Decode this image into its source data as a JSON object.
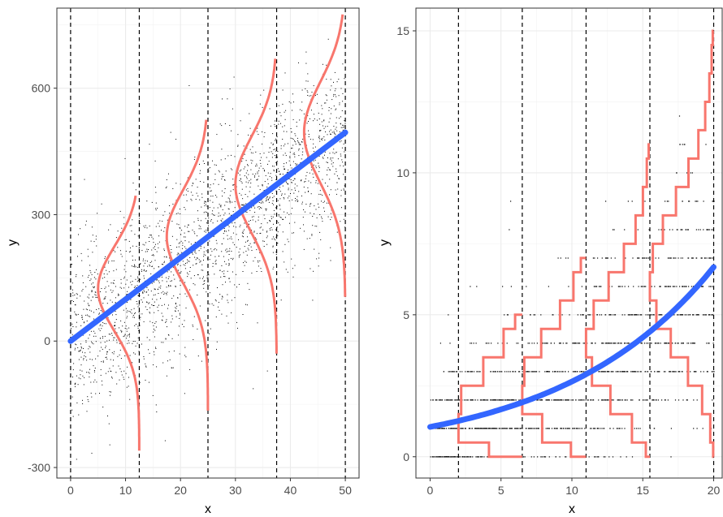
{
  "chart_data": [
    {
      "type": "scatter",
      "xlabel": "x",
      "ylabel": "y",
      "xlim": [
        -2.5,
        52.5
      ],
      "ylim": [
        -325,
        790
      ],
      "xticks": [
        0,
        10,
        20,
        30,
        40,
        50
      ],
      "yticks": [
        -300,
        0,
        300,
        600
      ],
      "xtick_labels": [
        "0",
        "10",
        "20",
        "30",
        "40",
        "50"
      ],
      "ytick_labels": [
        "-300",
        "0",
        "300",
        "600"
      ],
      "grid": true,
      "vlines": [
        0,
        12.5,
        25,
        37.5,
        50
      ],
      "scatter_sample_count": 2200,
      "trend_line": {
        "intercept": 0,
        "slope": 9.9,
        "x": [
          0,
          50
        ]
      },
      "density_curves": [
        {
          "x_anchor": 12.5,
          "mean": 124,
          "sd": 100,
          "y_range": [
            -260,
            345
          ]
        },
        {
          "x_anchor": 25,
          "mean": 248,
          "sd": 110,
          "y_range": [
            -165,
            525
          ]
        },
        {
          "x_anchor": 37.5,
          "mean": 371,
          "sd": 115,
          "y_range": [
            -30,
            670
          ]
        },
        {
          "x_anchor": 50,
          "mean": 495,
          "sd": 120,
          "y_range": [
            105,
            775
          ]
        }
      ],
      "colors": {
        "points": "#000000",
        "trend": "#3366ff",
        "density": "#f8766d",
        "vlines": "#000000",
        "grid": "#ebebeb",
        "border": "#333333"
      }
    },
    {
      "type": "scatter",
      "xlabel": "x",
      "ylabel": "y",
      "xlim": [
        -1,
        20.6
      ],
      "ylim": [
        -0.75,
        15.8
      ],
      "xticks": [
        0,
        5,
        10,
        15,
        20
      ],
      "yticks": [
        0,
        5,
        10,
        15
      ],
      "xtick_labels": [
        "0",
        "5",
        "10",
        "15",
        "20"
      ],
      "ytick_labels": [
        "0",
        "5",
        "10",
        "15"
      ],
      "grid": true,
      "vlines": [
        2,
        6.5,
        11,
        15.5,
        20
      ],
      "trend_curve": {
        "model": "exp",
        "a": 1.05,
        "b": 0.0925,
        "x": [
          0,
          20
        ]
      },
      "poisson_steps": [
        {
          "x_anchor": 6.5,
          "counts": [
            0,
            1,
            2,
            3,
            4,
            5
          ],
          "y_max": 5
        },
        {
          "x_anchor": 11,
          "counts": [
            0,
            1,
            2,
            3,
            4,
            5,
            6,
            7
          ],
          "y_max": 7
        },
        {
          "x_anchor": 15.5,
          "counts": [
            0,
            1,
            2,
            3,
            4,
            5,
            6,
            7,
            8,
            9,
            10,
            11
          ],
          "y_max": 11
        },
        {
          "x_anchor": 20,
          "counts": [
            0,
            1,
            2,
            3,
            4,
            5,
            6,
            7,
            8,
            9,
            10,
            11,
            12,
            13,
            14,
            15
          ],
          "y_max": 15
        }
      ],
      "colors": {
        "points": "#000000",
        "trend": "#3366ff",
        "density": "#f8766d",
        "vlines": "#000000",
        "grid": "#ebebeb",
        "border": "#333333"
      }
    }
  ]
}
